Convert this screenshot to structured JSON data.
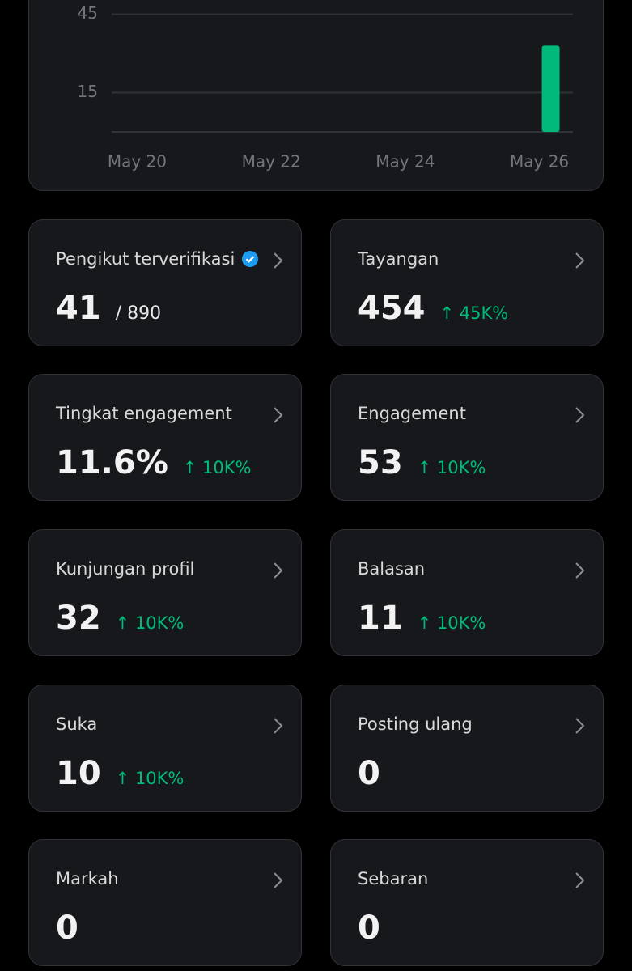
{
  "chart_data": {
    "type": "bar",
    "color": "#00ba7c",
    "grid": true,
    "categories": [
      "May 20",
      null,
      "May 22",
      null,
      "May 24",
      null,
      "May 26"
    ],
    "values": [
      0,
      0,
      0,
      0,
      0,
      0,
      33
    ],
    "ylim": [
      0,
      50
    ],
    "yticks": [
      15,
      45
    ]
  },
  "cards": [
    {
      "title": "Pengikut terverifikasi",
      "verified": true,
      "value": "41",
      "sub": "/ 890"
    },
    {
      "title": "Tayangan",
      "value": "454",
      "change": "↑ 45K%"
    },
    {
      "title": "Tingkat engagement",
      "value": "11.6%",
      "change": "↑ 10K%"
    },
    {
      "title": "Engagement",
      "value": "53",
      "change": "↑ 10K%"
    },
    {
      "title": "Kunjungan profil",
      "value": "32",
      "change": "↑ 10K%"
    },
    {
      "title": "Balasan",
      "value": "11",
      "change": "↑ 10K%"
    },
    {
      "title": "Suka",
      "value": "10",
      "change": "↑ 10K%"
    },
    {
      "title": "Posting ulang",
      "value": "0"
    },
    {
      "title": "Markah",
      "value": "0"
    },
    {
      "title": "Sebaran",
      "value": "0"
    }
  ]
}
